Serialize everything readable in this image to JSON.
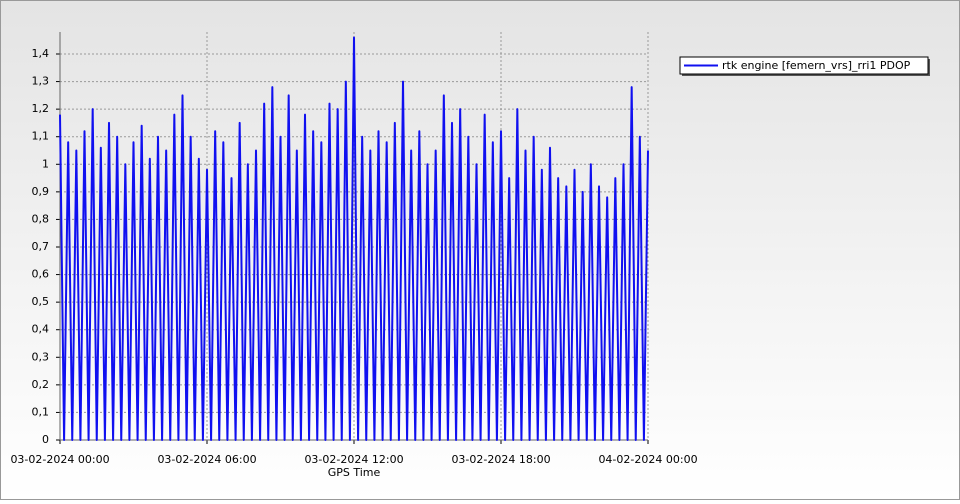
{
  "chart_data": {
    "type": "line",
    "x_label": "GPS Time",
    "x": [
      "03-02-2024 00:00",
      "03-02-2024 00:10",
      "03-02-2024 00:20",
      "03-02-2024 00:30",
      "03-02-2024 00:40",
      "03-02-2024 00:50",
      "03-02-2024 01:00",
      "03-02-2024 01:10",
      "03-02-2024 01:20",
      "03-02-2024 01:30",
      "03-02-2024 01:40",
      "03-02-2024 01:50",
      "03-02-2024 02:00",
      "03-02-2024 02:10",
      "03-02-2024 02:20",
      "03-02-2024 02:30",
      "03-02-2024 02:40",
      "03-02-2024 02:50",
      "03-02-2024 03:00",
      "03-02-2024 03:10",
      "03-02-2024 03:20",
      "03-02-2024 03:30",
      "03-02-2024 03:40",
      "03-02-2024 03:50",
      "03-02-2024 04:00",
      "03-02-2024 04:10",
      "03-02-2024 04:20",
      "03-02-2024 04:30",
      "03-02-2024 04:40",
      "03-02-2024 04:50",
      "03-02-2024 05:00",
      "03-02-2024 05:10",
      "03-02-2024 05:20",
      "03-02-2024 05:30",
      "03-02-2024 05:40",
      "03-02-2024 05:50",
      "03-02-2024 06:00",
      "03-02-2024 06:10",
      "03-02-2024 06:20",
      "03-02-2024 06:30",
      "03-02-2024 06:40",
      "03-02-2024 06:50",
      "03-02-2024 07:00",
      "03-02-2024 07:10",
      "03-02-2024 07:20",
      "03-02-2024 07:30",
      "03-02-2024 07:40",
      "03-02-2024 07:50",
      "03-02-2024 08:00",
      "03-02-2024 08:10",
      "03-02-2024 08:20",
      "03-02-2024 08:30",
      "03-02-2024 08:40",
      "03-02-2024 08:50",
      "03-02-2024 09:00",
      "03-02-2024 09:10",
      "03-02-2024 09:20",
      "03-02-2024 09:30",
      "03-02-2024 09:40",
      "03-02-2024 09:50",
      "03-02-2024 10:00",
      "03-02-2024 10:10",
      "03-02-2024 10:20",
      "03-02-2024 10:30",
      "03-02-2024 10:40",
      "03-02-2024 10:50",
      "03-02-2024 11:00",
      "03-02-2024 11:10",
      "03-02-2024 11:20",
      "03-02-2024 11:30",
      "03-02-2024 11:40",
      "03-02-2024 11:50",
      "03-02-2024 12:00",
      "03-02-2024 12:10",
      "03-02-2024 12:20",
      "03-02-2024 12:30",
      "03-02-2024 12:40",
      "03-02-2024 12:50",
      "03-02-2024 13:00",
      "03-02-2024 13:10",
      "03-02-2024 13:20",
      "03-02-2024 13:30",
      "03-02-2024 13:40",
      "03-02-2024 13:50",
      "03-02-2024 14:00",
      "03-02-2024 14:10",
      "03-02-2024 14:20",
      "03-02-2024 14:30",
      "03-02-2024 14:40",
      "03-02-2024 14:50",
      "03-02-2024 15:00",
      "03-02-2024 15:10",
      "03-02-2024 15:20",
      "03-02-2024 15:30",
      "03-02-2024 15:40",
      "03-02-2024 15:50",
      "03-02-2024 16:00",
      "03-02-2024 16:10",
      "03-02-2024 16:20",
      "03-02-2024 16:30",
      "03-02-2024 16:40",
      "03-02-2024 16:50",
      "03-02-2024 17:00",
      "03-02-2024 17:10",
      "03-02-2024 17:20",
      "03-02-2024 17:30",
      "03-02-2024 17:40",
      "03-02-2024 17:50",
      "03-02-2024 18:00",
      "03-02-2024 18:10",
      "03-02-2024 18:20",
      "03-02-2024 18:30",
      "03-02-2024 18:40",
      "03-02-2024 18:50",
      "03-02-2024 19:00",
      "03-02-2024 19:10",
      "03-02-2024 19:20",
      "03-02-2024 19:30",
      "03-02-2024 19:40",
      "03-02-2024 19:50",
      "03-02-2024 20:00",
      "03-02-2024 20:10",
      "03-02-2024 20:20",
      "03-02-2024 20:30",
      "03-02-2024 20:40",
      "03-02-2024 20:50",
      "03-02-2024 21:00",
      "03-02-2024 21:10",
      "03-02-2024 21:20",
      "03-02-2024 21:30",
      "03-02-2024 21:40",
      "03-02-2024 21:50",
      "03-02-2024 22:00",
      "03-02-2024 22:10",
      "03-02-2024 22:20",
      "03-02-2024 22:30",
      "03-02-2024 22:40",
      "03-02-2024 22:50",
      "03-02-2024 23:00",
      "03-02-2024 23:10",
      "03-02-2024 23:20",
      "03-02-2024 23:30",
      "03-02-2024 23:40",
      "03-02-2024 23:50",
      "04-02-2024 00:00"
    ],
    "series": [
      {
        "name": "rtk engine [femern_vrs]_rri1 PDOP",
        "color": "#1010f0",
        "values": [
          1.18,
          0,
          1.08,
          0,
          1.05,
          0,
          1.12,
          0,
          1.2,
          0,
          1.06,
          0,
          1.15,
          0,
          1.1,
          0,
          1.0,
          0,
          1.08,
          0,
          1.14,
          0,
          1.02,
          0,
          1.1,
          0,
          1.05,
          0,
          1.18,
          0,
          1.25,
          0,
          1.1,
          0,
          1.02,
          0,
          0.98,
          0,
          1.12,
          0,
          1.08,
          0,
          0.95,
          0,
          1.15,
          0,
          1.0,
          0,
          1.05,
          0,
          1.22,
          0,
          1.28,
          0,
          1.1,
          0,
          1.25,
          0,
          1.05,
          0,
          1.18,
          0,
          1.12,
          0,
          1.08,
          0,
          1.22,
          0,
          1.2,
          0,
          1.3,
          0,
          1.46,
          0,
          1.1,
          0,
          1.05,
          0,
          1.12,
          0,
          1.08,
          0,
          1.15,
          0,
          1.3,
          0,
          1.05,
          0,
          1.12,
          0,
          1.0,
          0,
          1.05,
          0,
          1.25,
          0,
          1.15,
          0,
          1.2,
          0,
          1.1,
          0,
          1.0,
          0,
          1.18,
          0,
          1.08,
          0,
          1.12,
          0,
          0.95,
          0,
          1.2,
          0,
          1.05,
          0,
          1.1,
          0,
          0.98,
          0,
          1.06,
          0,
          0.95,
          0,
          0.92,
          0,
          0.98,
          0,
          0.9,
          0,
          1.0,
          0,
          0.92,
          0,
          0.88,
          0,
          0.95,
          0,
          1.0,
          0,
          1.28,
          0,
          1.1,
          0,
          1.05
        ]
      }
    ],
    "xlim": [
      "03-02-2024 00:00",
      "04-02-2024 00:00"
    ],
    "xticks": [
      "03-02-2024 00:00",
      "03-02-2024 06:00",
      "03-02-2024 12:00",
      "03-02-2024 18:00",
      "04-02-2024 00:00"
    ],
    "ylim": [
      0,
      1.4
    ],
    "yticks": [
      0,
      {
        "value": 0.1,
        "label": "0,1"
      },
      {
        "value": 0.2,
        "label": "0,2"
      },
      {
        "value": 0.3,
        "label": "0,3"
      },
      {
        "value": 0.4,
        "label": "0,4"
      },
      {
        "value": 0.5,
        "label": "0,5"
      },
      {
        "value": 0.6,
        "label": "0,6"
      },
      {
        "value": 0.7,
        "label": "0,7"
      },
      {
        "value": 0.8,
        "label": "0,8"
      },
      {
        "value": 0.9,
        "label": "0,9"
      },
      1,
      {
        "value": 1.1,
        "label": "1,1"
      },
      {
        "value": 1.2,
        "label": "1,2"
      },
      {
        "value": 1.3,
        "label": "1,3"
      },
      {
        "value": 1.4,
        "label": "1,4"
      }
    ],
    "grid": true,
    "legend": "top-right"
  }
}
